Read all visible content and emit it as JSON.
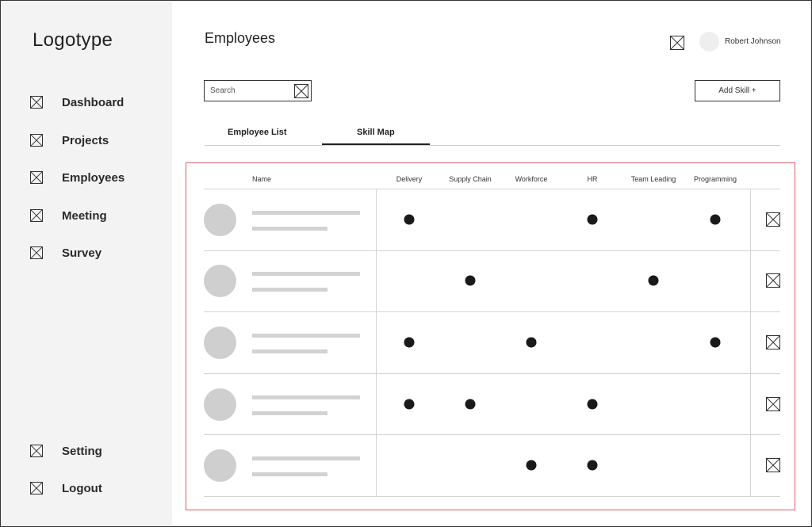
{
  "sidebar": {
    "logo": "Logotype",
    "items": [
      {
        "label": "Dashboard",
        "icon": "placeholder-icon"
      },
      {
        "label": "Projects",
        "icon": "placeholder-icon"
      },
      {
        "label": "Employees",
        "icon": "placeholder-icon"
      },
      {
        "label": "Meeting",
        "icon": "placeholder-icon"
      },
      {
        "label": "Survey",
        "icon": "placeholder-icon"
      }
    ],
    "bottom_items": [
      {
        "label": "Setting",
        "icon": "placeholder-icon"
      },
      {
        "label": "Logout",
        "icon": "placeholder-icon"
      }
    ]
  },
  "header": {
    "title": "Employees",
    "user_name": "Robert Johnson"
  },
  "search": {
    "placeholder": "Search"
  },
  "toolbar": {
    "add_skill_label": "Add Skill +"
  },
  "tabs": [
    {
      "label": "Employee List",
      "active": false
    },
    {
      "label": "Skill Map",
      "active": true
    }
  ],
  "table": {
    "name_header": "Name",
    "skills": [
      "Delivery",
      "Supply Chain",
      "Workforce",
      "HR",
      "Team Leading",
      "Programming"
    ],
    "rows": [
      {
        "skills": [
          true,
          false,
          false,
          true,
          false,
          true
        ]
      },
      {
        "skills": [
          false,
          true,
          false,
          false,
          true,
          false
        ]
      },
      {
        "skills": [
          true,
          false,
          true,
          false,
          false,
          true
        ]
      },
      {
        "skills": [
          true,
          true,
          false,
          true,
          false,
          false
        ]
      },
      {
        "skills": [
          false,
          false,
          true,
          true,
          false,
          false
        ]
      }
    ]
  },
  "colors": {
    "sidebar_bg": "#f3f3f3",
    "selection_outline": "#e35b6b",
    "dot": "#1a1a1a",
    "placeholder_gray": "#cfcfcf"
  }
}
